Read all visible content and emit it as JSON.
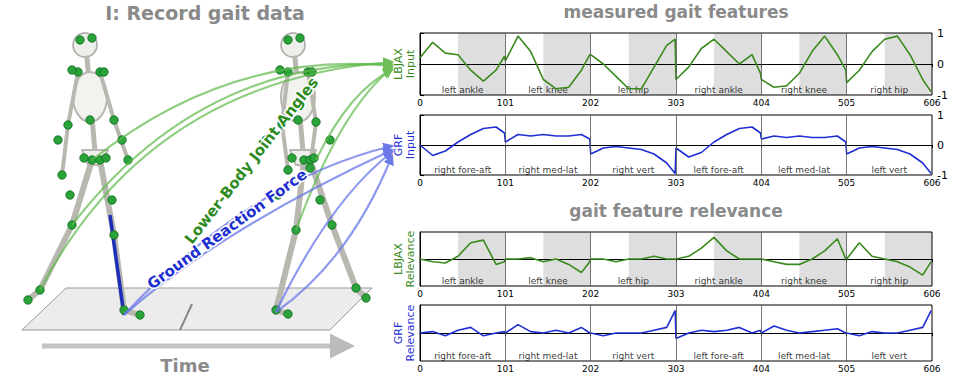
{
  "illustration": {
    "title": "I: Record gait data",
    "labels": [
      "Lower-Body Joint Angles",
      "Ground Reaction Force"
    ],
    "axis_label": "Time"
  },
  "chart_data": [
    {
      "type": "line",
      "title": "measured gait features",
      "ylabel": "LBJAX\nInput",
      "color": "#3a8a1c",
      "xlim": [
        0,
        606
      ],
      "xticks": [
        0,
        101,
        202,
        303,
        404,
        505,
        606
      ],
      "ylim": [
        -1,
        1
      ],
      "yticks": [
        -1,
        0,
        1
      ],
      "grid": false,
      "tick_labels": true,
      "segments": [
        "left ankle",
        "left knee",
        "left hip",
        "right ankle",
        "right knee",
        "right hip"
      ],
      "bands": [
        [
          45,
          101
        ],
        [
          146,
          202
        ],
        [
          247,
          303
        ],
        [
          348,
          404
        ],
        [
          449,
          505
        ],
        [
          550,
          606
        ]
      ],
      "x": [
        0,
        15,
        30,
        45,
        60,
        75,
        90,
        100,
        101,
        116,
        131,
        146,
        161,
        176,
        191,
        201,
        202,
        217,
        232,
        247,
        262,
        277,
        292,
        302,
        303,
        318,
        333,
        348,
        363,
        378,
        393,
        403,
        404,
        419,
        434,
        449,
        464,
        479,
        494,
        504,
        505,
        520,
        535,
        550,
        565,
        580,
        595,
        605
      ],
      "values": [
        0.2,
        0.7,
        0.35,
        0.3,
        -0.2,
        -0.55,
        -0.2,
        0.25,
        0.1,
        0.9,
        0.4,
        -0.5,
        -0.8,
        -0.75,
        -0.2,
        0.3,
        0.3,
        0.0,
        -0.4,
        -0.8,
        -0.8,
        -0.1,
        0.6,
        0.8,
        -0.5,
        -0.1,
        0.5,
        0.8,
        0.4,
        0.0,
        0.3,
        -0.3,
        -0.5,
        -0.75,
        -0.7,
        -0.3,
        0.4,
        0.9,
        0.3,
        -0.2,
        -0.6,
        -0.2,
        0.4,
        0.8,
        0.9,
        0.3,
        -0.5,
        -0.9
      ]
    },
    {
      "type": "line",
      "ylabel": "GRF\nInput",
      "color": "#1f2fd6",
      "xlim": [
        0,
        606
      ],
      "xticks": [
        0,
        101,
        202,
        303,
        404,
        505,
        606
      ],
      "ylim": [
        -1,
        1
      ],
      "yticks": [
        -1,
        0,
        1
      ],
      "grid": false,
      "tick_labels": true,
      "segments": [
        "right fore-aft",
        "right med-lat",
        "right vert",
        "left fore-aft",
        "left med-lat",
        "left vert"
      ],
      "x": [
        0,
        15,
        30,
        45,
        60,
        75,
        90,
        100,
        101,
        116,
        131,
        146,
        161,
        176,
        191,
        201,
        202,
        217,
        232,
        247,
        262,
        277,
        292,
        302,
        303,
        318,
        333,
        348,
        363,
        378,
        393,
        403,
        404,
        419,
        434,
        449,
        464,
        479,
        494,
        504,
        505,
        520,
        535,
        550,
        565,
        580,
        595,
        605
      ],
      "values": [
        0.0,
        -0.35,
        -0.2,
        0.1,
        0.35,
        0.55,
        0.6,
        0.4,
        0.1,
        0.35,
        0.3,
        0.35,
        0.3,
        0.3,
        0.35,
        0.2,
        -0.3,
        -0.1,
        -0.05,
        -0.1,
        -0.15,
        -0.3,
        -0.6,
        -0.95,
        -0.1,
        -0.4,
        -0.25,
        0.1,
        0.35,
        0.55,
        0.6,
        0.4,
        0.2,
        0.3,
        0.25,
        0.3,
        0.25,
        0.25,
        0.3,
        0.1,
        -0.3,
        -0.1,
        -0.05,
        -0.1,
        -0.15,
        -0.3,
        -0.6,
        -0.95
      ]
    },
    {
      "type": "line",
      "title": "gait feature relevance",
      "ylabel": "LBJAX\nRelevance",
      "color": "#3a8a1c",
      "colors": [
        "#40c8ff",
        "#0010e0",
        "#000000",
        "#d00000",
        "#ffe000"
      ],
      "xlim": [
        0,
        606
      ],
      "xticks": [
        0,
        101,
        202,
        303,
        404,
        505,
        606
      ],
      "ylim": [
        -1,
        1
      ],
      "yticks": [
        0
      ],
      "grid": false,
      "tick_labels": "x",
      "segments": [
        "left ankle",
        "left knee",
        "left hip",
        "right ankle",
        "right knee",
        "right hip"
      ],
      "bands": [
        [
          45,
          101
        ],
        [
          146,
          202
        ],
        [
          247,
          303
        ],
        [
          348,
          404
        ],
        [
          449,
          505
        ],
        [
          550,
          606
        ]
      ],
      "x": [
        0,
        15,
        30,
        45,
        60,
        75,
        90,
        100,
        101,
        116,
        131,
        146,
        161,
        176,
        191,
        201,
        202,
        217,
        232,
        247,
        262,
        277,
        292,
        302,
        303,
        318,
        333,
        348,
        363,
        378,
        393,
        403,
        404,
        419,
        434,
        449,
        464,
        479,
        494,
        504,
        505,
        520,
        535,
        550,
        565,
        580,
        595,
        605
      ],
      "values": [
        0.0,
        -0.1,
        -0.15,
        0.1,
        0.6,
        0.7,
        -0.2,
        -0.1,
        0.0,
        0.0,
        0.05,
        -0.1,
        0.0,
        -0.2,
        -0.5,
        -0.1,
        0.0,
        0.0,
        -0.1,
        0.0,
        0.0,
        0.1,
        0.0,
        0.0,
        0.0,
        0.1,
        0.4,
        0.8,
        0.3,
        0.0,
        0.0,
        0.0,
        0.0,
        -0.1,
        -0.2,
        -0.2,
        0.0,
        0.3,
        0.75,
        0.0,
        0.0,
        0.6,
        0.1,
        0.0,
        -0.1,
        -0.3,
        -0.6,
        -0.1
      ]
    },
    {
      "type": "line",
      "ylabel": "GRF\nRelevance",
      "color": "#1f2fd6",
      "colors": [
        "#40c8ff",
        "#0010e0",
        "#000000",
        "#d00000",
        "#ffe000"
      ],
      "xlim": [
        0,
        606
      ],
      "xticks": [
        0,
        101,
        202,
        303,
        404,
        505,
        606
      ],
      "ylim": [
        -1,
        1
      ],
      "yticks": [
        0
      ],
      "grid": false,
      "tick_labels": "x",
      "segments": [
        "right fore-aft",
        "right med-lat",
        "right vert",
        "left fore-aft",
        "left med-lat",
        "left vert"
      ],
      "x": [
        0,
        15,
        30,
        45,
        60,
        75,
        90,
        100,
        101,
        116,
        131,
        146,
        161,
        176,
        191,
        201,
        202,
        217,
        232,
        247,
        262,
        277,
        292,
        302,
        303,
        318,
        333,
        348,
        363,
        378,
        393,
        403,
        404,
        419,
        434,
        449,
        464,
        479,
        494,
        504,
        505,
        520,
        535,
        550,
        565,
        580,
        595,
        605
      ],
      "values": [
        0.0,
        0.05,
        -0.1,
        0.1,
        0.2,
        -0.1,
        0.0,
        0.05,
        0.0,
        0.3,
        0.05,
        0.0,
        0.1,
        0.0,
        0.2,
        0.0,
        0.0,
        -0.1,
        0.0,
        0.0,
        0.0,
        0.1,
        0.2,
        0.8,
        -0.2,
        0.0,
        0.1,
        0.05,
        0.1,
        0.2,
        0.0,
        0.1,
        0.0,
        0.25,
        0.1,
        0.0,
        0.05,
        0.1,
        0.15,
        0.0,
        0.0,
        -0.1,
        0.05,
        0.0,
        0.0,
        0.1,
        0.2,
        0.8
      ]
    }
  ]
}
